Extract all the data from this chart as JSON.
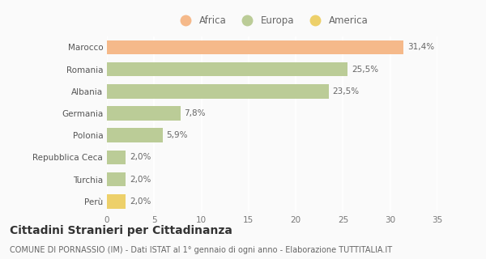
{
  "categories": [
    "Marocco",
    "Romania",
    "Albania",
    "Germania",
    "Polonia",
    "Repubblica Ceca",
    "Turchia",
    "Perù"
  ],
  "values": [
    31.4,
    25.5,
    23.5,
    7.8,
    5.9,
    2.0,
    2.0,
    2.0
  ],
  "labels": [
    "31,4%",
    "25,5%",
    "23,5%",
    "7,8%",
    "5,9%",
    "2,0%",
    "2,0%",
    "2,0%"
  ],
  "colors": [
    "#F5B98A",
    "#BBCC97",
    "#BBCC97",
    "#BBCC97",
    "#BBCC97",
    "#BBCC97",
    "#BBCC97",
    "#EDD06A"
  ],
  "legend": [
    {
      "label": "Africa",
      "color": "#F5B98A"
    },
    {
      "label": "Europa",
      "color": "#BBCC97"
    },
    {
      "label": "America",
      "color": "#EDD06A"
    }
  ],
  "xlim": [
    0,
    35
  ],
  "xticks": [
    0,
    5,
    10,
    15,
    20,
    25,
    30,
    35
  ],
  "title": "Cittadini Stranieri per Cittadinanza",
  "subtitle": "COMUNE DI PORNASSIO (IM) - Dati ISTAT al 1° gennaio di ogni anno - Elaborazione TUTTITALIA.IT",
  "bg_color": "#FAFAFA",
  "plot_bg_color": "#FAFAFA",
  "grid_color": "#FFFFFF",
  "label_fontsize": 7.5,
  "bar_label_fontsize": 7.5,
  "title_fontsize": 10,
  "subtitle_fontsize": 7
}
